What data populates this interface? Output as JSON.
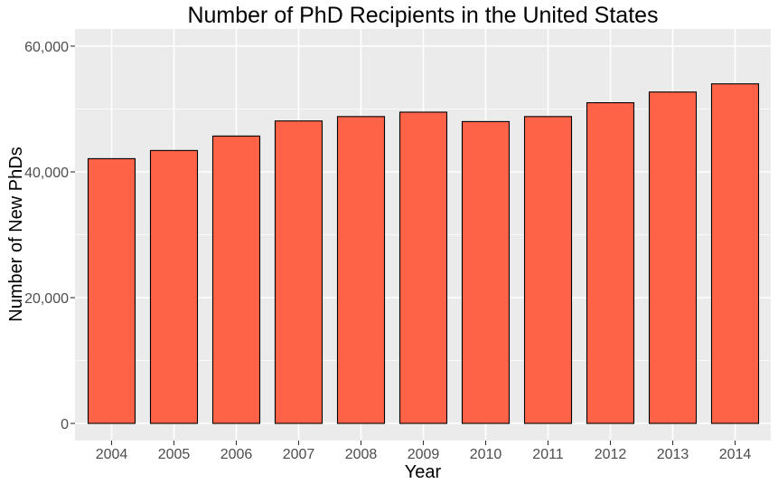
{
  "chart_data": {
    "type": "bar",
    "title": "Number of PhD Recipients in the United States",
    "xlabel": "Year",
    "ylabel": "Number of New PhDs",
    "categories": [
      "2004",
      "2005",
      "2006",
      "2007",
      "2008",
      "2009",
      "2010",
      "2011",
      "2012",
      "2013",
      "2014"
    ],
    "values": [
      42100,
      43400,
      45700,
      48100,
      48800,
      49500,
      48000,
      48800,
      51000,
      52700,
      54000
    ],
    "ylim": [
      0,
      60000
    ],
    "yticks": [
      0,
      20000,
      40000,
      60000
    ],
    "ytick_labels": [
      "0",
      "20,000",
      "40,000",
      "60,000"
    ],
    "grid": true,
    "colors": {
      "bar_fill": "#FF6347",
      "bar_stroke": "#000000",
      "panel_background": "#EBEBEB",
      "gridline": "#FFFFFF"
    }
  }
}
